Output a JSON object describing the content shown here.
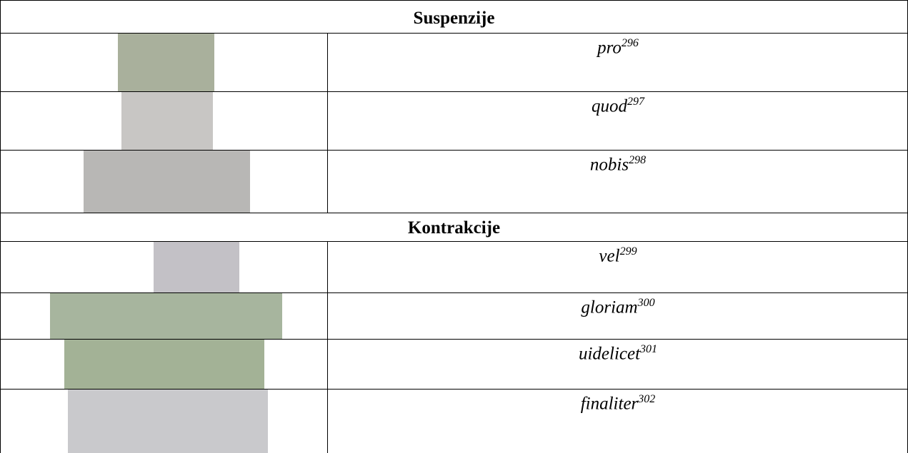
{
  "table": {
    "sections": [
      {
        "heading": "Suspenzije",
        "rows": [
          {
            "term": "pro",
            "note": "296"
          },
          {
            "term": "quod",
            "note": "297"
          },
          {
            "term": "nobis",
            "note": "298"
          }
        ]
      },
      {
        "heading": "Kontrakcije",
        "rows": [
          {
            "term": "vel",
            "note": "299"
          },
          {
            "term": "gloriam",
            "note": "300"
          },
          {
            "term": "uidelicet",
            "note": "301"
          },
          {
            "term": "finaliter",
            "note": "302"
          }
        ]
      }
    ]
  }
}
